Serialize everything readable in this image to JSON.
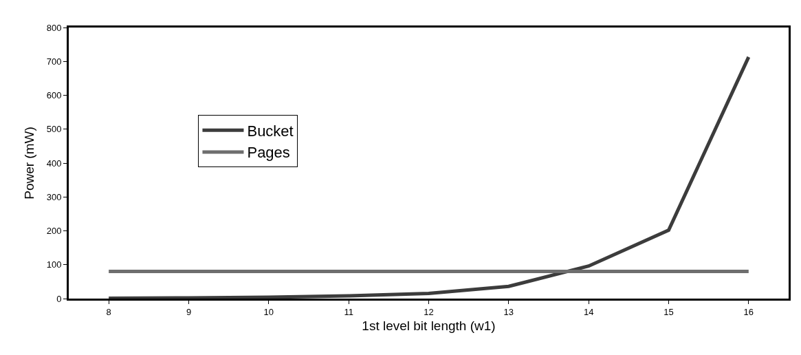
{
  "chart_data": {
    "type": "line",
    "xlabel": "1st level bit length (w1)",
    "ylabel": "Power (mW)",
    "categories": [
      "8",
      "9",
      "10",
      "11",
      "12",
      "13",
      "14",
      "15",
      "16"
    ],
    "series": [
      {
        "name": "Bucket",
        "color": "#3c3c3c",
        "values": [
          1,
          2,
          4,
          8,
          15,
          36,
          96,
          202,
          713
        ]
      },
      {
        "name": "Pages",
        "color": "#6e6e6e",
        "values": [
          80,
          80,
          80,
          80,
          80,
          80,
          80,
          80,
          80
        ]
      }
    ],
    "ylim": [
      0,
      800
    ],
    "yticks": [
      0,
      100,
      200,
      300,
      400,
      500,
      600,
      700,
      800
    ],
    "grid": false,
    "legend": "left",
    "marker": "none",
    "line_style": "solid"
  }
}
